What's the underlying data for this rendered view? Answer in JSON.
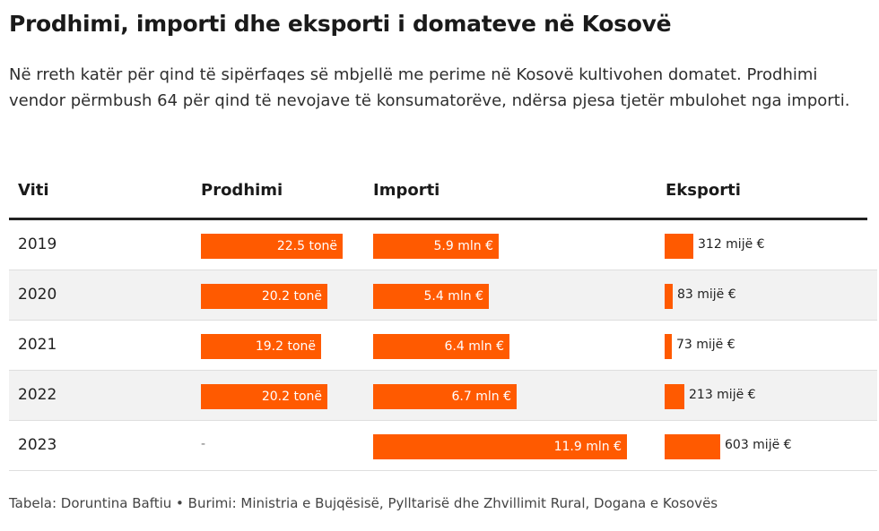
{
  "title": "Prodhimi, importi dhe eksporti i domateve në Kosovë",
  "subtitle": "Në rreth katër për qind të sipërfaqes së mbjellë me perime në Kosovë kultivohen domatet. Prodhimi vendor përmbush 64 për qind të nevojave të konsumatorëve, ndërsa pjesa tjetër mbulohet nga importi.",
  "footer": "Tabela: Doruntina Baftiu • Burimi: Ministria e Bujqësisë, Pylltarisë dhe Zhvillimit Rural, Dogana e Kosovës",
  "colors": {
    "bar": "#ff5a00"
  },
  "chart_data": {
    "type": "table",
    "columns": [
      "Viti",
      "Prodhimi",
      "Importi",
      "Eksporti"
    ],
    "rows": [
      {
        "year": "2019",
        "prodhimi": 22.5,
        "prodhimi_label": "22.5 tonë",
        "importi": 5.9,
        "importi_label": "5.9 mln €",
        "eksporti": 312,
        "eksporti_label": "312 mijë €"
      },
      {
        "year": "2020",
        "prodhimi": 20.2,
        "prodhimi_label": "20.2 tonë",
        "importi": 5.4,
        "importi_label": "5.4 mln €",
        "eksporti": 83,
        "eksporti_label": "83 mijë €"
      },
      {
        "year": "2021",
        "prodhimi": 19.2,
        "prodhimi_label": "19.2 tonë",
        "importi": 6.4,
        "importi_label": "6.4 mln €",
        "eksporti": 73,
        "eksporti_label": "73 mijë €"
      },
      {
        "year": "2022",
        "prodhimi": 20.2,
        "prodhimi_label": "20.2 tonë",
        "importi": 6.7,
        "importi_label": "6.7 mln €",
        "eksporti": 213,
        "eksporti_label": "213 mijë €"
      },
      {
        "year": "2023",
        "prodhimi": null,
        "prodhimi_label": "-",
        "importi": 11.9,
        "importi_label": "11.9 mln €",
        "eksporti": 603,
        "eksporti_label": "603 mijë €"
      }
    ]
  }
}
